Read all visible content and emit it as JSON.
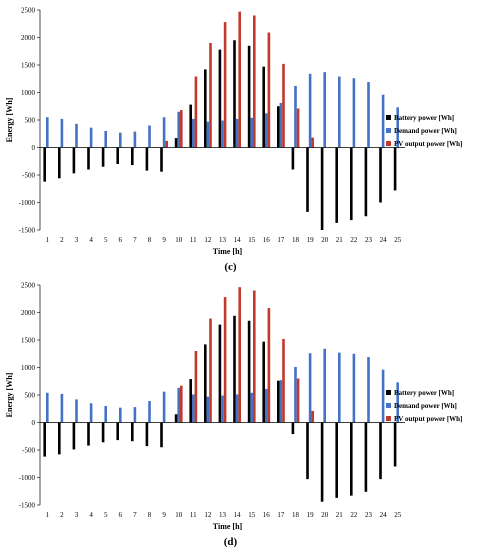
{
  "chart_data": [
    {
      "type": "bar",
      "panel_label": "(c)",
      "xlabel": "Time [h]",
      "ylabel": "Energy [Wh]",
      "ylim": [
        -1500,
        2500
      ],
      "yticks": [
        -1500,
        -1000,
        -500,
        0,
        500,
        1000,
        1500,
        2000,
        2500
      ],
      "categories": [
        "1",
        "2",
        "3",
        "4",
        "5",
        "6",
        "7",
        "8",
        "9",
        "10",
        "11",
        "12",
        "13",
        "14",
        "15",
        "16",
        "17",
        "18",
        "19",
        "20",
        "21",
        "22",
        "23",
        "24",
        "25"
      ],
      "legend_position": "right",
      "series": [
        {
          "name": "Battery power [Wh]",
          "color": "#000000",
          "values": [
            -620,
            -560,
            -470,
            -400,
            -350,
            -300,
            -320,
            -420,
            -440,
            170,
            780,
            1420,
            1780,
            1950,
            1850,
            1470,
            750,
            -400,
            -1170,
            -1500,
            -1370,
            -1320,
            -1250,
            -1000,
            -780
          ]
        },
        {
          "name": "Demand power [Wh]",
          "color": "#4472c4",
          "values": [
            550,
            520,
            430,
            360,
            300,
            270,
            290,
            400,
            550,
            650,
            520,
            470,
            490,
            520,
            540,
            620,
            810,
            1120,
            1340,
            1370,
            1290,
            1260,
            1190,
            960,
            730
          ]
        },
        {
          "name": "PV output power [Wh]",
          "color": "#c0392b",
          "values": [
            0,
            0,
            0,
            0,
            0,
            0,
            0,
            0,
            120,
            680,
            1290,
            1900,
            2280,
            2470,
            2400,
            2090,
            1520,
            710,
            180,
            0,
            0,
            0,
            0,
            0,
            0
          ]
        }
      ]
    },
    {
      "type": "bar",
      "panel_label": "(d)",
      "xlabel": "Time [h]",
      "ylabel": "Energy [Wh]",
      "ylim": [
        -1500,
        2500
      ],
      "yticks": [
        -1500,
        -1000,
        -500,
        0,
        500,
        1000,
        1500,
        2000,
        2500
      ],
      "categories": [
        "1",
        "2",
        "3",
        "4",
        "5",
        "6",
        "7",
        "8",
        "9",
        "10",
        "11",
        "12",
        "13",
        "14",
        "15",
        "16",
        "17",
        "18",
        "19",
        "20",
        "21",
        "22",
        "23",
        "24",
        "25"
      ],
      "legend_position": "right",
      "series": [
        {
          "name": "Battery power [Wh]",
          "color": "#000000",
          "values": [
            -620,
            -580,
            -490,
            -420,
            -360,
            -320,
            -340,
            -430,
            -450,
            150,
            790,
            1420,
            1780,
            1940,
            1850,
            1470,
            760,
            -210,
            -1030,
            -1440,
            -1370,
            -1330,
            -1260,
            -1030,
            -800
          ]
        },
        {
          "name": "Demand power [Wh]",
          "color": "#4472c4",
          "values": [
            540,
            520,
            420,
            350,
            300,
            270,
            280,
            390,
            560,
            630,
            510,
            470,
            490,
            510,
            540,
            610,
            770,
            1010,
            1260,
            1340,
            1270,
            1250,
            1190,
            960,
            730
          ]
        },
        {
          "name": "PV output power [Wh]",
          "color": "#c0392b",
          "values": [
            0,
            0,
            0,
            0,
            0,
            0,
            0,
            0,
            0,
            670,
            1300,
            1890,
            2280,
            2460,
            2400,
            2080,
            1520,
            800,
            210,
            0,
            0,
            0,
            0,
            0,
            0
          ]
        }
      ]
    }
  ]
}
